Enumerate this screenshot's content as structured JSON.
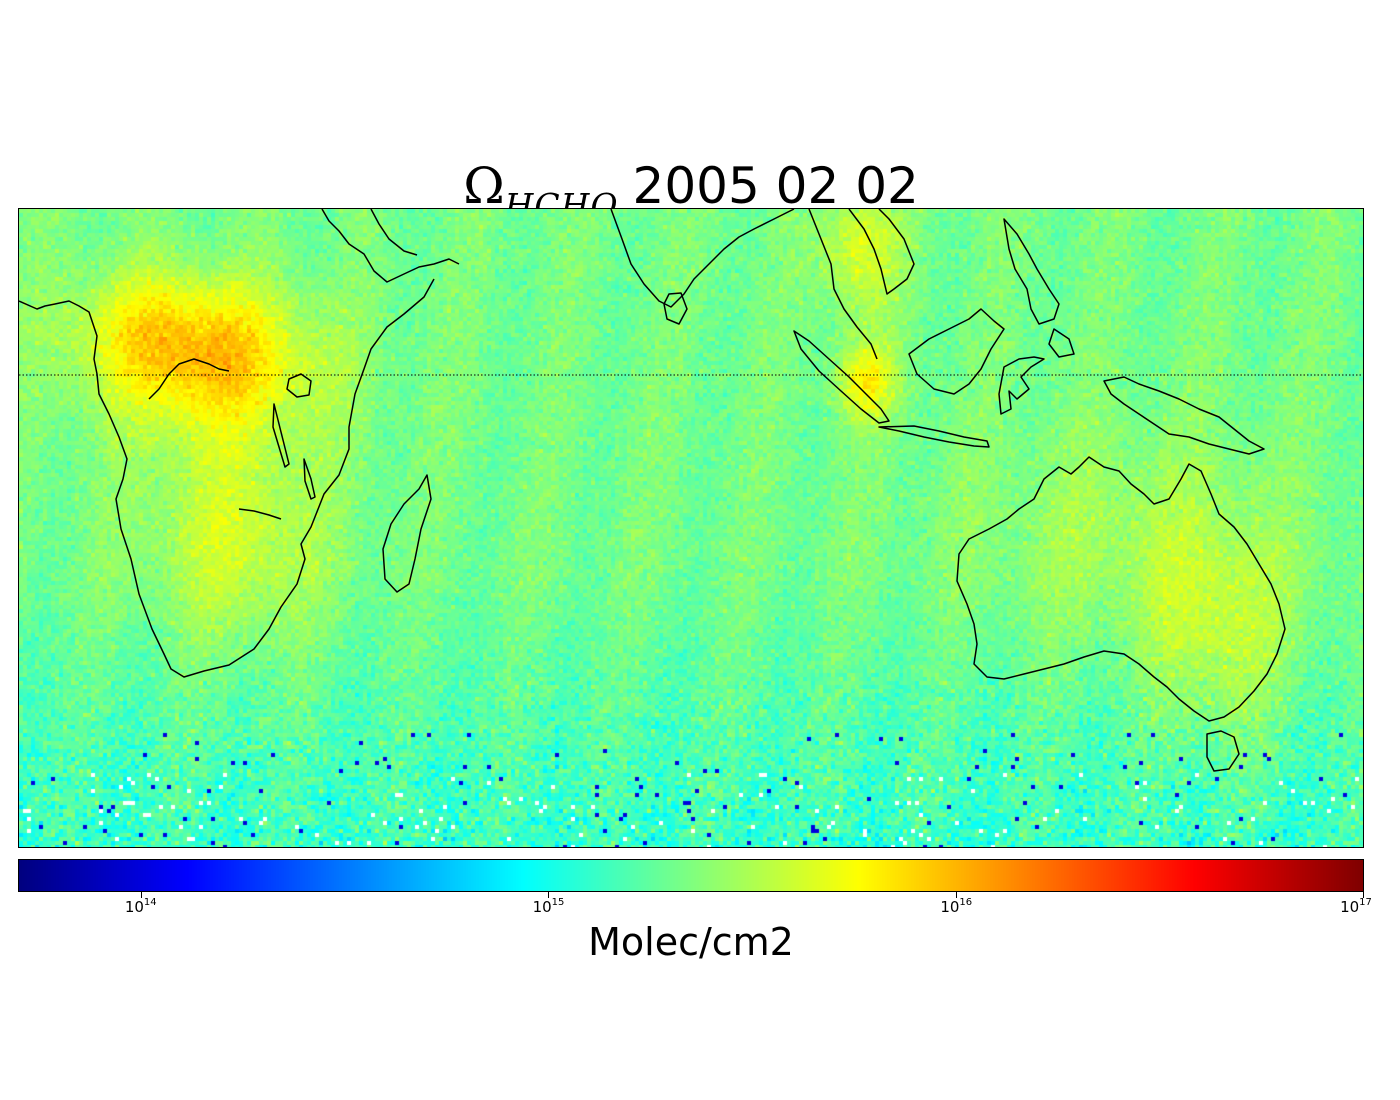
{
  "title": {
    "symbol": "Ω",
    "subscript": "HCHO",
    "date": "2005 02 02"
  },
  "colorbar": {
    "colormap": "jet",
    "scale": "log",
    "range": [
      50000000000000,
      100000000000000000
    ],
    "ticks": [
      {
        "value": 100000000000000,
        "base": "10",
        "exp": "14"
      },
      {
        "value": 1000000000000000,
        "base": "10",
        "exp": "15"
      },
      {
        "value": 10000000000000000,
        "base": "10",
        "exp": "16"
      },
      {
        "value": 100000000000000000,
        "base": "10",
        "exp": "17"
      }
    ],
    "label": "Molec/cm2"
  },
  "map": {
    "projection": "equirectangular",
    "extent": {
      "lon": [
        10,
        160
      ],
      "lat": [
        -50,
        20
      ]
    },
    "equator_line": "dotted",
    "coastline_color": "#000000",
    "hotspots": [
      "central-africa",
      "southern-africa",
      "sumatra",
      "indochina",
      "eastern-australia"
    ]
  }
}
